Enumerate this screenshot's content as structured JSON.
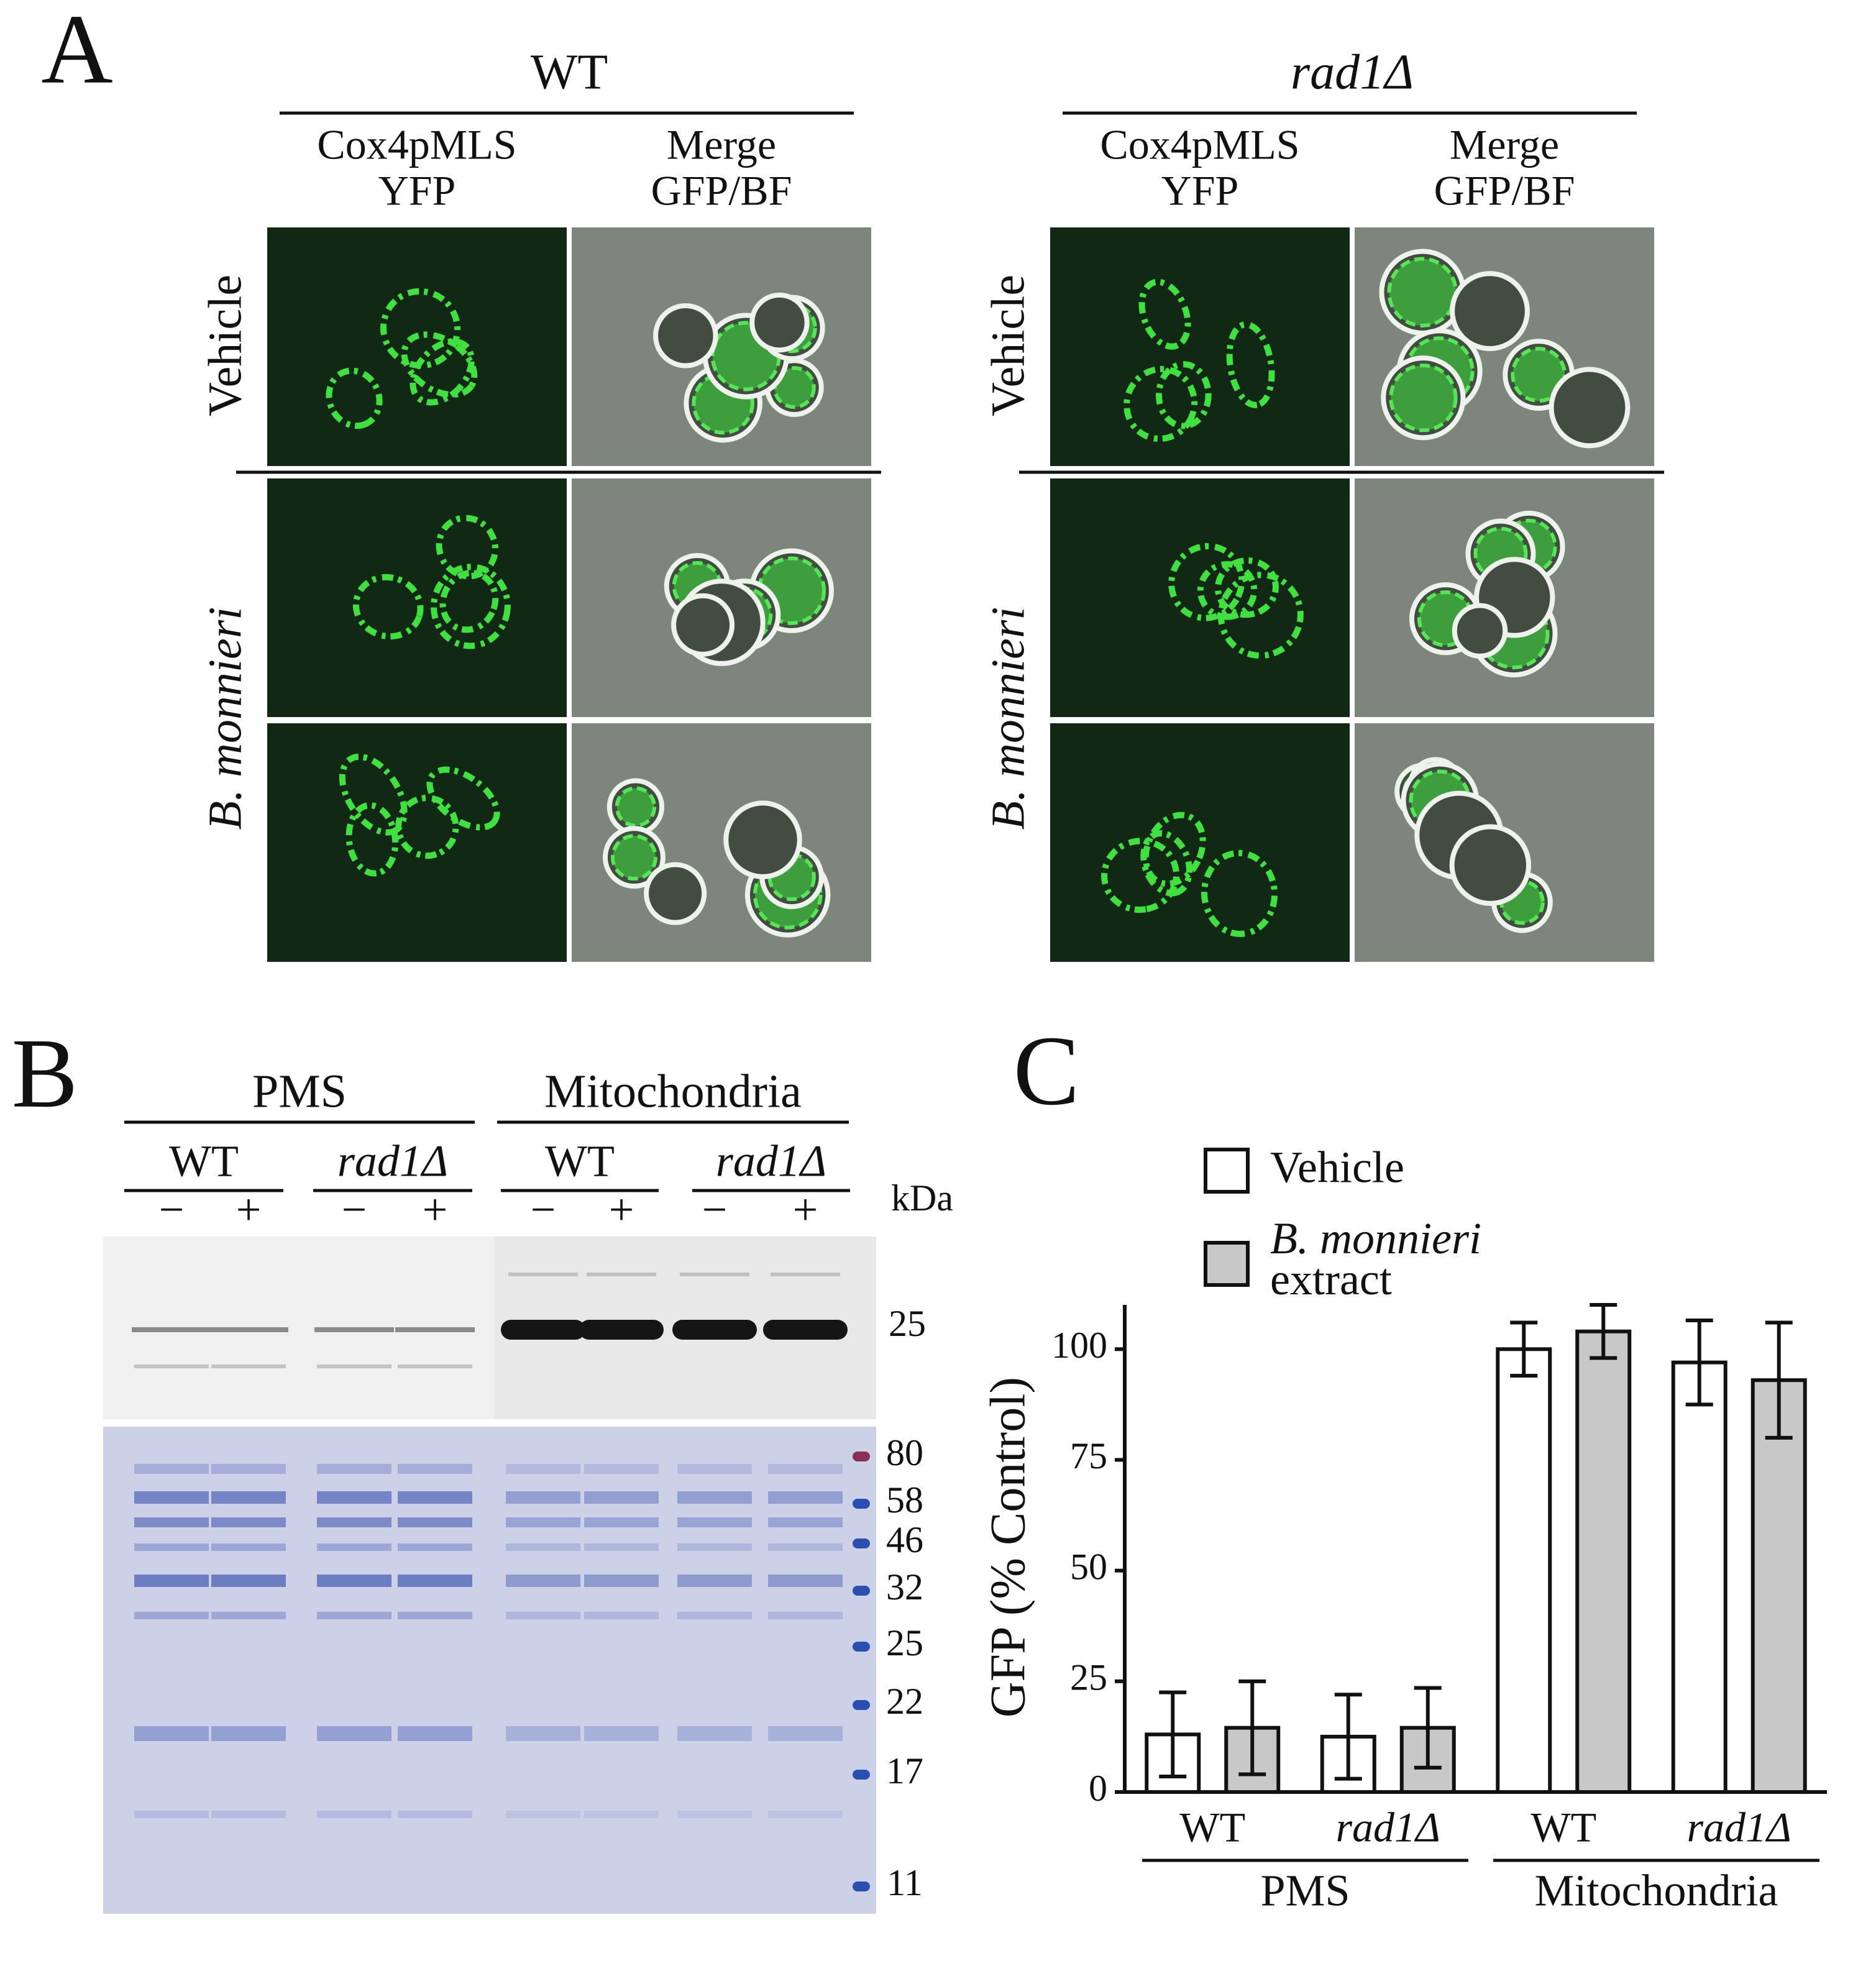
{
  "panel_a": {
    "label": "A",
    "strains": [
      {
        "name": "WT",
        "columns": [
          [
            "Cox4pMLS",
            "YFP"
          ],
          [
            "Merge",
            "GFP/BF"
          ]
        ],
        "rows": [
          "Vehicle",
          "B. monnieri"
        ]
      },
      {
        "name": "rad1Δ",
        "columns": [
          [
            "Cox4pMLS",
            "YFP"
          ],
          [
            "Merge",
            "GFP/BF"
          ]
        ],
        "rows": [
          "Vehicle",
          "B. monnieri"
        ]
      }
    ]
  },
  "panel_b": {
    "label": "B",
    "fractions": [
      {
        "name": "PMS",
        "strains": [
          {
            "name": "WT",
            "lanes": [
              "−",
              "+"
            ]
          },
          {
            "name": "rad1Δ",
            "lanes": [
              "−",
              "+"
            ]
          }
        ]
      },
      {
        "name": "Mitochondria",
        "strains": [
          {
            "name": "WT",
            "lanes": [
              "−",
              "+"
            ]
          },
          {
            "name": "rad1Δ",
            "lanes": [
              "−",
              "+"
            ]
          }
        ]
      }
    ],
    "unit": "kDa",
    "blot_markers": [
      25
    ],
    "gel_markers": [
      80,
      58,
      46,
      32,
      25,
      22,
      17,
      11
    ]
  },
  "chart_data": {
    "type": "bar",
    "label": "C",
    "ylabel": "GFP (% Control)",
    "categories": [
      "WT",
      "rad1Δ",
      "WT",
      "rad1Δ"
    ],
    "groups": [
      "PMS",
      "Mitochondria"
    ],
    "series": [
      {
        "name": "Vehicle",
        "color": "#ffffff",
        "values": [
          13,
          12.5,
          100,
          97
        ],
        "errors": [
          9.5,
          9.5,
          6,
          9.5
        ]
      },
      {
        "name": "B. monnieri extract",
        "color": "#c8c8c8",
        "values": [
          14.5,
          14.5,
          104,
          93
        ],
        "errors": [
          10.5,
          9,
          6,
          13
        ]
      }
    ],
    "ylim": [
      0,
      110
    ],
    "yticks": [
      0,
      25,
      50,
      75,
      100
    ]
  }
}
